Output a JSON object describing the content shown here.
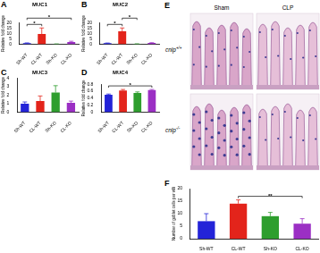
{
  "chart_data": [
    {
      "panel": "A",
      "type": "bar",
      "title": "MUC1",
      "y_label": "Relative fold change",
      "categories": [
        "Sh-WT",
        "CL-WT",
        "Sh-KO",
        "CL-KO"
      ],
      "values": [
        1.0,
        9.5,
        0.3,
        2.2
      ],
      "errors": [
        0.3,
        5.5,
        0.1,
        0.6
      ],
      "colors": [
        "#2323d8",
        "#e3241b",
        "#2e9e2e",
        "#9b2fc4"
      ],
      "ylim": [
        0,
        20
      ],
      "yticks": [
        0,
        5,
        10,
        15,
        20
      ],
      "grid": false,
      "significance": [
        {
          "from": 0,
          "to": 1,
          "label": "*"
        },
        {
          "from": 0,
          "to": 3,
          "label": "*"
        }
      ]
    },
    {
      "panel": "B",
      "type": "bar",
      "title": "MUC2",
      "y_label": "Relative fold change",
      "categories": [
        "Sh-WT",
        "CL-WT",
        "Sh-KO",
        "CL-KO"
      ],
      "values": [
        1.0,
        12.0,
        0.4,
        1.2
      ],
      "errors": [
        0.2,
        3.0,
        0.1,
        0.3
      ],
      "colors": [
        "#2323d8",
        "#e3241b",
        "#2e9e2e",
        "#9b2fc4"
      ],
      "ylim": [
        0,
        20
      ],
      "yticks": [
        0,
        5,
        10,
        15,
        20
      ],
      "grid": false,
      "significance": [
        {
          "from": 0,
          "to": 1,
          "label": "*"
        },
        {
          "from": 1,
          "to": 2,
          "label": "*"
        }
      ]
    },
    {
      "panel": "C",
      "type": "bar",
      "title": "MUC3",
      "y_label": "Relative fold change",
      "categories": [
        "Sh-WT",
        "CL-WT",
        "Sh-KO",
        "CL-KO"
      ],
      "values": [
        1.0,
        1.3,
        2.3,
        1.1
      ],
      "errors": [
        0.2,
        0.6,
        0.8,
        0.2
      ],
      "colors": [
        "#2323d8",
        "#e3241b",
        "#2e9e2e",
        "#9b2fc4"
      ],
      "ylim": [
        0,
        4
      ],
      "yticks": [
        0,
        1,
        2,
        3,
        4
      ],
      "grid": false,
      "significance": []
    },
    {
      "panel": "D",
      "type": "bar",
      "title": "MUC4",
      "y_label": "Relative fold change",
      "categories": [
        "Sh-WT",
        "CL-WT",
        "Sh-KO",
        "CL-KO"
      ],
      "values": [
        0.5,
        0.62,
        0.55,
        0.63
      ],
      "errors": [
        0.02,
        0.03,
        0.03,
        0.02
      ],
      "colors": [
        "#2323d8",
        "#e3241b",
        "#2e9e2e",
        "#9b2fc4"
      ],
      "ylim": [
        0,
        0.8
      ],
      "yticks": [
        0,
        0.2,
        0.4,
        0.6,
        0.8
      ],
      "grid": false,
      "significance": [
        {
          "from": 0,
          "to": 3,
          "label": "*"
        }
      ]
    },
    {
      "panel": "F",
      "type": "bar",
      "y_label": "Number of goblet cells per villi",
      "categories": [
        "Sh-WT",
        "CL-WT",
        "Sh-KO",
        "CL-KO"
      ],
      "values": [
        7,
        14,
        9,
        6
      ],
      "errors": [
        3,
        1.5,
        1.5,
        2
      ],
      "colors": [
        "#2323d8",
        "#e3241b",
        "#2e9e2e",
        "#9b2fc4"
      ],
      "ylim": [
        0,
        20
      ],
      "yticks": [
        0,
        5,
        10,
        15,
        20
      ],
      "grid": false,
      "significance": [
        {
          "from": 1,
          "to": 3,
          "label": "**"
        }
      ]
    }
  ],
  "image_panel": {
    "panel": "E",
    "columns": [
      "Sham",
      "CLP"
    ],
    "rows": [
      "cnlp+/+",
      "cnlp-/-"
    ]
  }
}
